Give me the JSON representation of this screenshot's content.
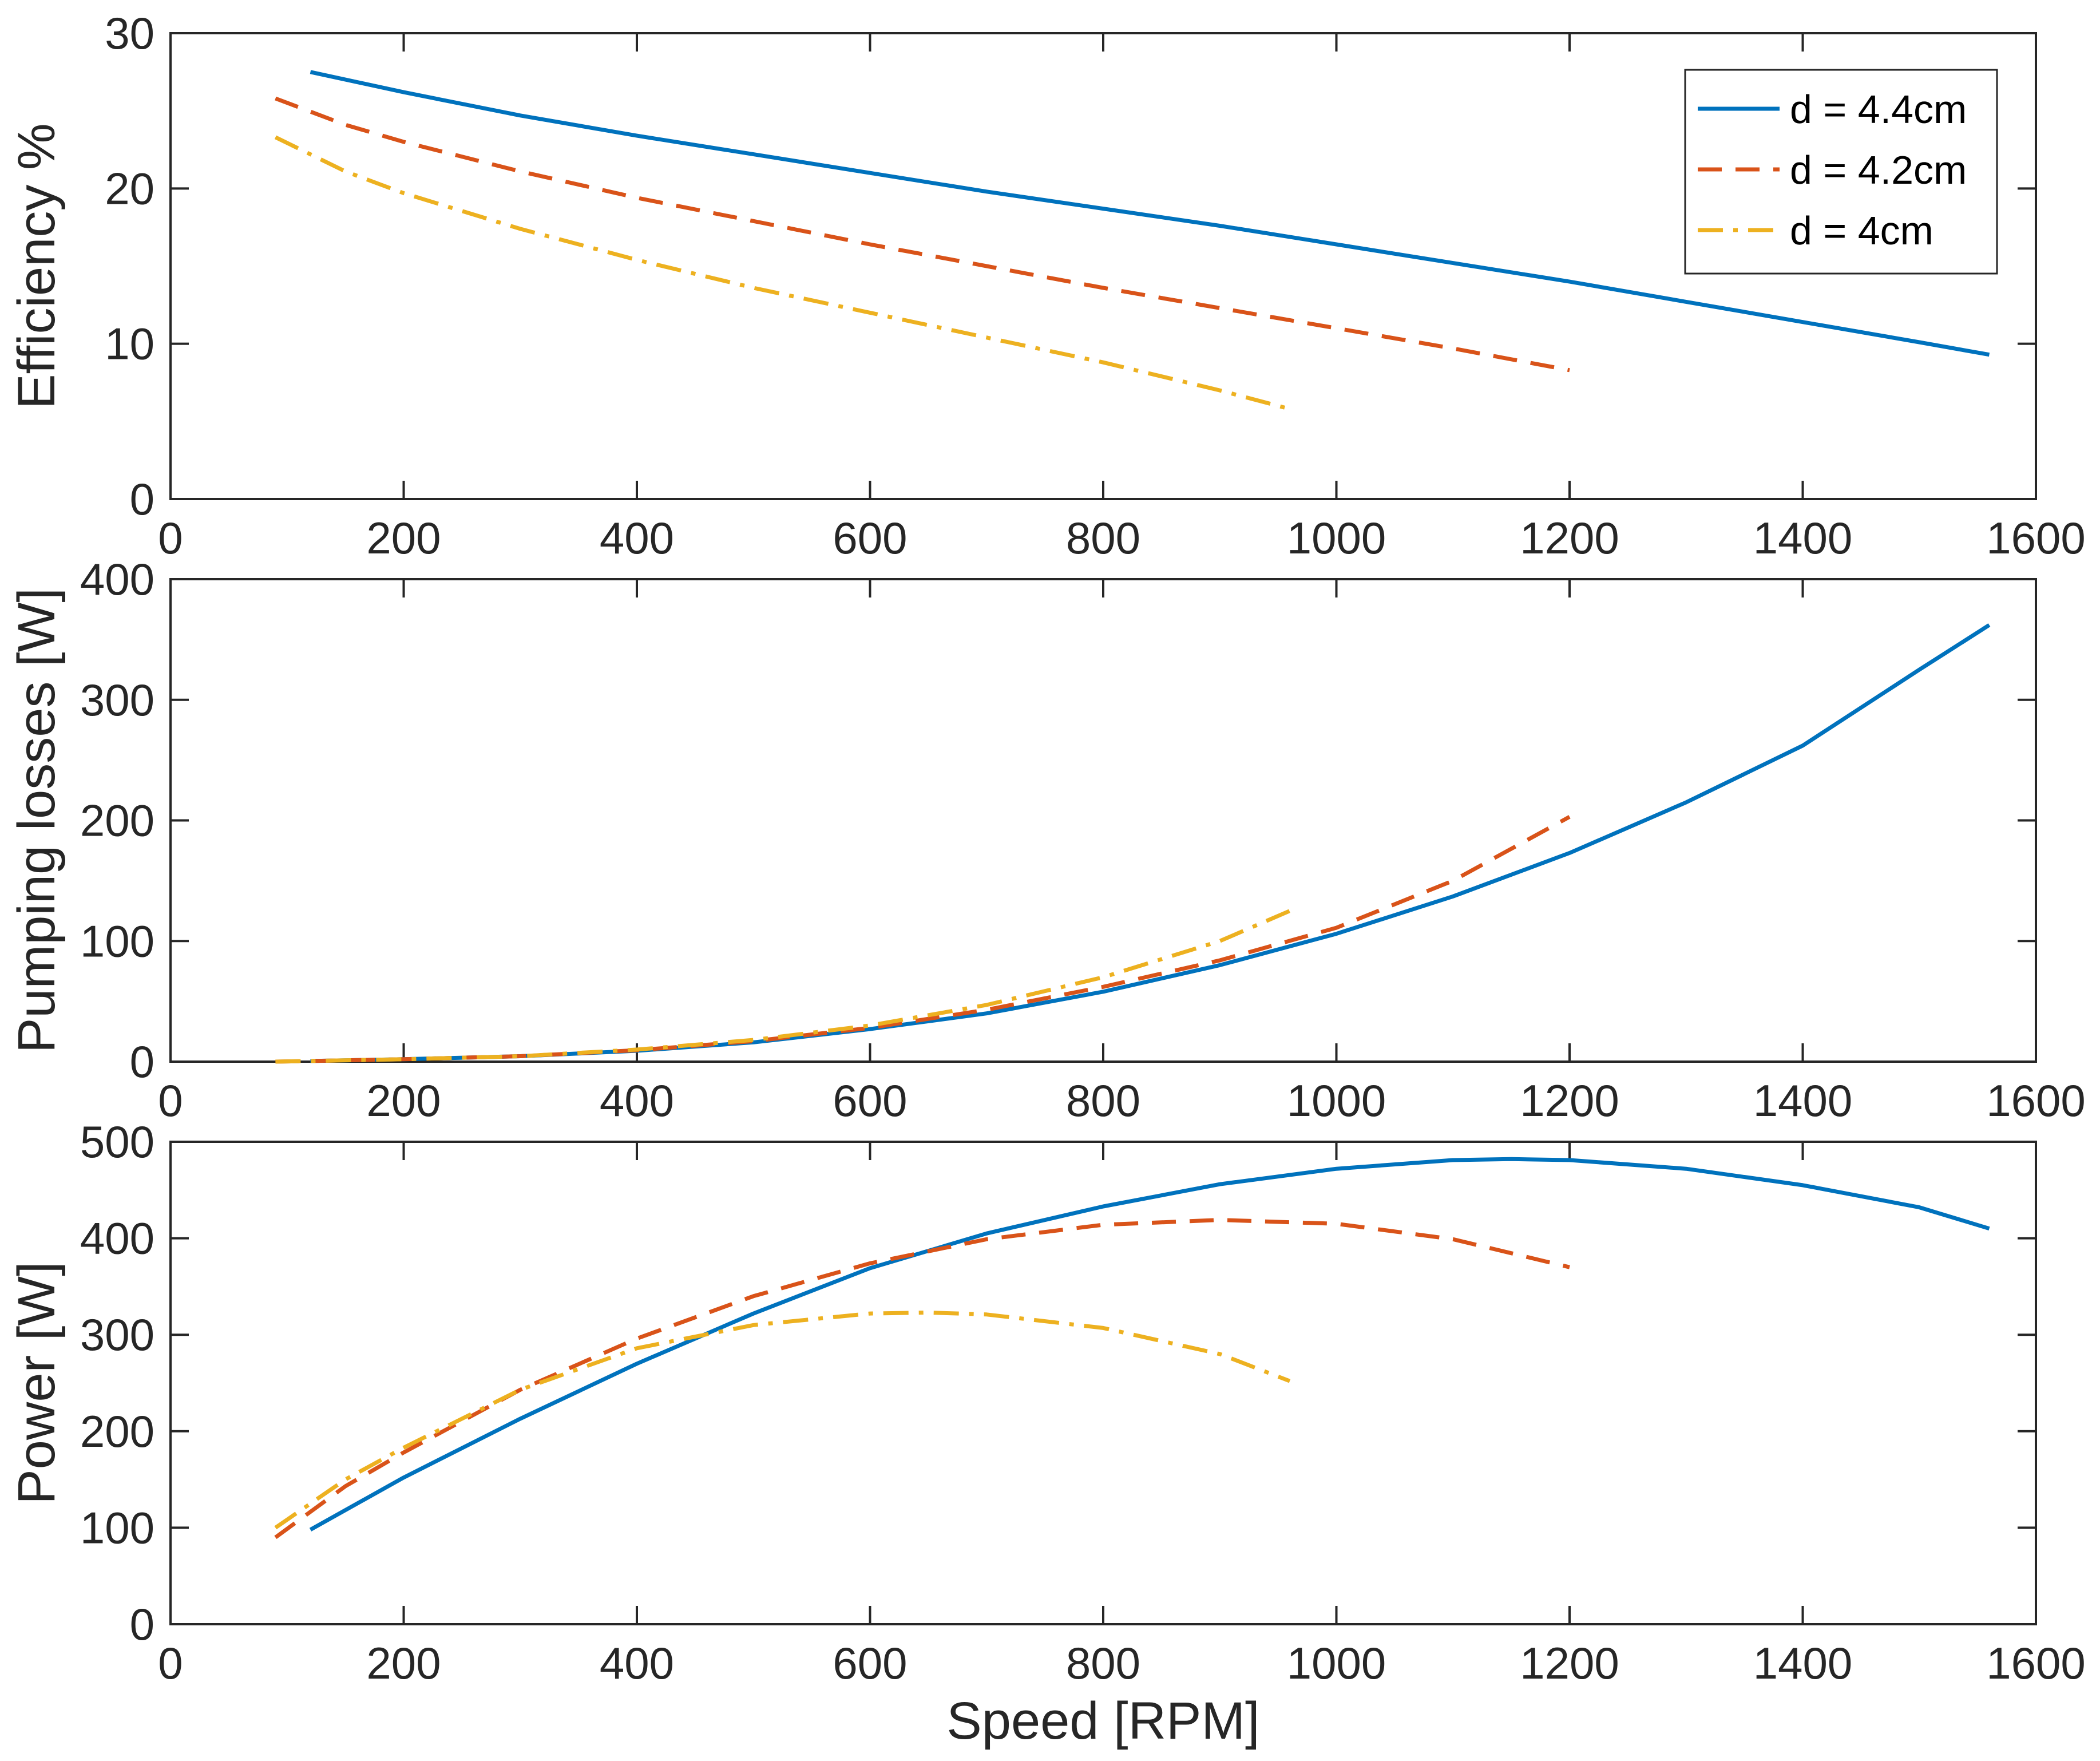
{
  "chart_data": [
    {
      "id": "efficiency",
      "type": "line",
      "title": "",
      "xlabel": "",
      "ylabel": "Efficiency %",
      "xlim": [
        0,
        1600
      ],
      "ylim": [
        0,
        30
      ],
      "xticks": [
        "0",
        "200",
        "400",
        "600",
        "800",
        "1000",
        "1200",
        "1400",
        "1600"
      ],
      "yticks": [
        "0",
        "10",
        "20",
        "30"
      ],
      "legend": {
        "placement": "top-right",
        "entries": [
          "d = 4.4cm",
          "d = 4.2cm",
          "d = 4cm"
        ]
      },
      "series": [
        {
          "name": "d = 4.4cm",
          "x": [
            120,
            200,
            300,
            400,
            500,
            600,
            700,
            800,
            900,
            1000,
            1100,
            1200,
            1300,
            1400,
            1500,
            1560
          ],
          "y": [
            27.5,
            26.2,
            24.7,
            23.4,
            22.2,
            21.0,
            19.8,
            18.7,
            17.6,
            16.4,
            15.2,
            14.0,
            12.7,
            11.4,
            10.1,
            9.3
          ]
        },
        {
          "name": "d = 4.2cm",
          "x": [
            90,
            150,
            200,
            300,
            400,
            500,
            600,
            700,
            800,
            900,
            1000,
            1100,
            1200
          ],
          "y": [
            25.8,
            24.1,
            23.0,
            21.1,
            19.4,
            17.9,
            16.4,
            15.0,
            13.6,
            12.3,
            11.0,
            9.7,
            8.3
          ]
        },
        {
          "name": "d = 4cm",
          "x": [
            90,
            150,
            200,
            300,
            400,
            500,
            600,
            700,
            800,
            900,
            960
          ],
          "y": [
            23.3,
            21.1,
            19.7,
            17.4,
            15.4,
            13.6,
            12.0,
            10.4,
            8.8,
            7.0,
            5.8
          ]
        }
      ]
    },
    {
      "id": "pumping",
      "type": "line",
      "title": "",
      "xlabel": "",
      "ylabel": "Pumping losses [W]",
      "xlim": [
        0,
        1600
      ],
      "ylim": [
        0,
        400
      ],
      "xticks": [
        "0",
        "200",
        "400",
        "600",
        "800",
        "1000",
        "1200",
        "1400",
        "1600"
      ],
      "yticks": [
        "0",
        "100",
        "200",
        "300",
        "400"
      ],
      "series": [
        {
          "name": "d = 4.4cm",
          "x": [
            120,
            200,
            300,
            400,
            500,
            600,
            700,
            800,
            900,
            1000,
            1100,
            1200,
            1300,
            1400,
            1500,
            1560
          ],
          "y": [
            0.5,
            2,
            4.5,
            9,
            16,
            27,
            40,
            58,
            80,
            106,
            137,
            173,
            215,
            262,
            325,
            362
          ]
        },
        {
          "name": "d = 4.2cm",
          "x": [
            90,
            200,
            300,
            400,
            500,
            600,
            700,
            800,
            900,
            1000,
            1100,
            1200
          ],
          "y": [
            0,
            2,
            4.5,
            9.5,
            17,
            28,
            43,
            62,
            84,
            111,
            150,
            203
          ]
        },
        {
          "name": "d = 4cm",
          "x": [
            90,
            200,
            300,
            400,
            500,
            600,
            700,
            800,
            900,
            960
          ],
          "y": [
            0,
            2,
            4.5,
            10,
            18,
            30,
            47,
            70,
            100,
            125
          ]
        }
      ]
    },
    {
      "id": "power",
      "type": "line",
      "title": "",
      "xlabel": "Speed [RPM]",
      "ylabel": "Power [W]",
      "xlim": [
        0,
        1600
      ],
      "ylim": [
        0,
        500
      ],
      "xticks": [
        "0",
        "200",
        "400",
        "600",
        "800",
        "1000",
        "1200",
        "1400",
        "1600"
      ],
      "yticks": [
        "0",
        "100",
        "200",
        "300",
        "400",
        "500"
      ],
      "series": [
        {
          "name": "d = 4.4cm",
          "x": [
            120,
            200,
            300,
            400,
            500,
            600,
            700,
            800,
            900,
            1000,
            1100,
            1150,
            1200,
            1300,
            1400,
            1500,
            1560
          ],
          "y": [
            98,
            152,
            213,
            270,
            322,
            369,
            405,
            433,
            456,
            472,
            481,
            482,
            481,
            472,
            455,
            432,
            410
          ]
        },
        {
          "name": "d = 4.2cm",
          "x": [
            90,
            150,
            200,
            300,
            400,
            500,
            600,
            700,
            800,
            900,
            1000,
            1100,
            1200
          ],
          "y": [
            90,
            143,
            178,
            243,
            296,
            340,
            374,
            399,
            414,
            419,
            415,
            399,
            370
          ]
        },
        {
          "name": "d = 4cm",
          "x": [
            90,
            150,
            200,
            300,
            400,
            500,
            600,
            650,
            700,
            800,
            900,
            960
          ],
          "y": [
            100,
            150,
            183,
            243,
            286,
            310,
            322,
            323,
            321,
            307,
            280,
            252
          ]
        }
      ]
    }
  ],
  "series_styles": [
    {
      "color": "#0072BD",
      "dash": ""
    },
    {
      "color": "#D95319",
      "dash": "42 24"
    },
    {
      "color": "#EDB120",
      "dash": "44 18 8 18"
    }
  ]
}
